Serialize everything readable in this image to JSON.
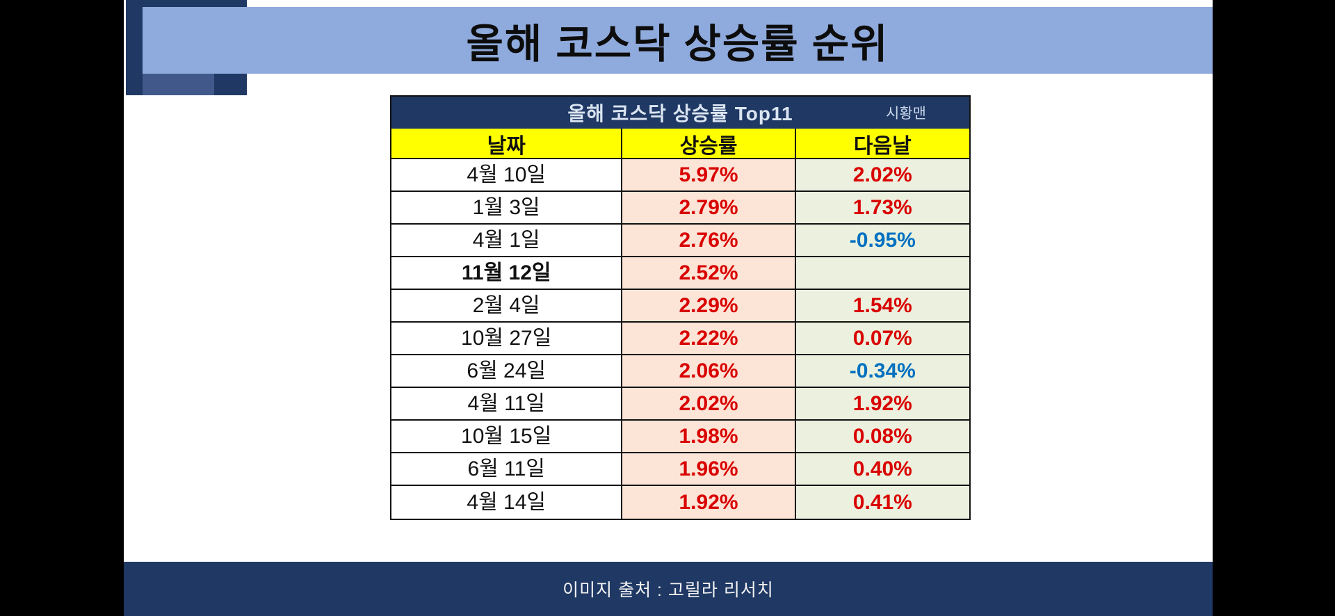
{
  "title": "올해 코스닥 상승률 순위",
  "table": {
    "header": "올해 코스닥 상승률 Top11",
    "watermark": "시황맨",
    "columns": [
      "날짜",
      "상승률",
      "다음날"
    ],
    "rows": [
      {
        "date": "4월 10일",
        "rise": "5.97%",
        "next": "2.02%"
      },
      {
        "date": "1월 3일",
        "rise": "2.79%",
        "next": "1.73%"
      },
      {
        "date": "4월 1일",
        "rise": "2.76%",
        "next": "-0.95%"
      },
      {
        "date": "11월 12일",
        "rise": "2.52%",
        "next": "",
        "bold": true
      },
      {
        "date": "2월 4일",
        "rise": "2.29%",
        "next": "1.54%"
      },
      {
        "date": "10월 27일",
        "rise": "2.22%",
        "next": "0.07%"
      },
      {
        "date": "6월 24일",
        "rise": "2.06%",
        "next": "-0.34%"
      },
      {
        "date": "4월 11일",
        "rise": "2.02%",
        "next": "1.92%"
      },
      {
        "date": "10월 15일",
        "rise": "1.98%",
        "next": "0.08%"
      },
      {
        "date": "6월 11일",
        "rise": "1.96%",
        "next": "0.40%"
      },
      {
        "date": "4월 14일",
        "rise": "1.92%",
        "next": "0.41%"
      }
    ]
  },
  "footer": "이미지 출처  : 고릴라 리서치",
  "colors": {
    "navy": "#1f3864",
    "banner_blue": "#8faadc",
    "accent_light": "#41598a",
    "header_yellow": "#ffff00",
    "rise_bg": "#fce4d6",
    "next_bg": "#ebf1de",
    "positive_red": "#d90000",
    "negative_blue": "#0070c0"
  },
  "chart_data": {
    "type": "table",
    "title": "올해 코스닥 상승률 Top11",
    "columns": [
      "날짜",
      "상승률",
      "다음날"
    ],
    "rows": [
      [
        "4월 10일",
        "5.97%",
        "2.02%"
      ],
      [
        "1월 3일",
        "2.79%",
        "1.73%"
      ],
      [
        "4월 1일",
        "2.76%",
        "-0.95%"
      ],
      [
        "11월 12일",
        "2.52%",
        ""
      ],
      [
        "2월 4일",
        "2.29%",
        "1.54%"
      ],
      [
        "10월 27일",
        "2.22%",
        "0.07%"
      ],
      [
        "6월 24일",
        "2.06%",
        "-0.34%"
      ],
      [
        "4월 11일",
        "2.02%",
        "1.92%"
      ],
      [
        "10월 15일",
        "1.98%",
        "0.08%"
      ],
      [
        "6월 11일",
        "1.96%",
        "0.40%"
      ],
      [
        "4월 14일",
        "1.92%",
        "0.41%"
      ]
    ],
    "notes": "상승률 values colored red; 다음날 negative values colored blue, positive red; 11월 12일 row has no next-day value"
  }
}
